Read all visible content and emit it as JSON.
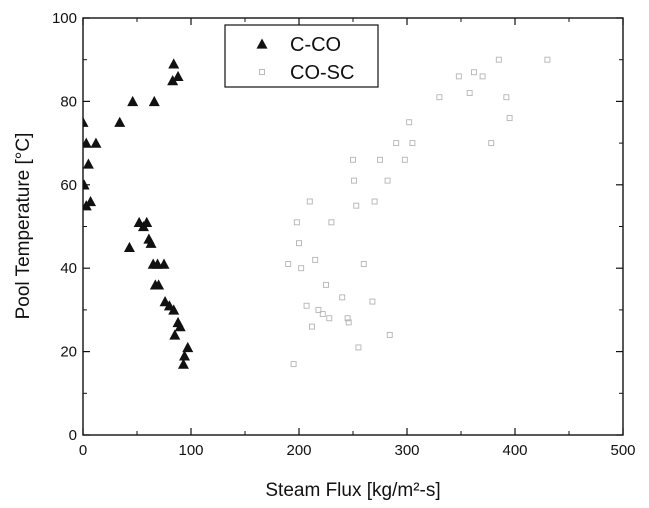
{
  "chart_data": {
    "type": "scatter",
    "xlabel": "Steam Flux [kg/m²-s]",
    "ylabel": "Pool Temperature [°C]",
    "xlim": [
      0,
      500
    ],
    "ylim": [
      0,
      100
    ],
    "x_ticks": [
      "0",
      "100",
      "200",
      "300",
      "400",
      "500"
    ],
    "y_ticks": [
      "0",
      "20",
      "40",
      "60",
      "80",
      "100"
    ],
    "grid": false,
    "legend_position": "top-center",
    "series": [
      {
        "name": "C-CO",
        "marker": "filled-triangle",
        "color": "#111111",
        "points": [
          [
            0,
            75
          ],
          [
            3,
            70
          ],
          [
            5,
            65
          ],
          [
            1,
            60
          ],
          [
            3,
            55
          ],
          [
            7,
            56
          ],
          [
            12,
            70
          ],
          [
            34,
            75
          ],
          [
            46,
            80
          ],
          [
            66,
            80
          ],
          [
            83,
            85
          ],
          [
            84,
            89
          ],
          [
            88,
            86
          ],
          [
            43,
            45
          ],
          [
            52,
            51
          ],
          [
            56,
            50
          ],
          [
            59,
            51
          ],
          [
            61,
            47
          ],
          [
            63,
            46
          ],
          [
            65,
            41
          ],
          [
            67,
            36
          ],
          [
            69,
            41
          ],
          [
            70,
            36
          ],
          [
            75,
            41
          ],
          [
            76,
            32
          ],
          [
            80,
            31
          ],
          [
            84,
            30
          ],
          [
            85,
            24
          ],
          [
            88,
            27
          ],
          [
            90,
            26
          ],
          [
            93,
            17
          ],
          [
            94,
            19
          ],
          [
            97,
            21
          ]
        ]
      },
      {
        "name": "CO-SC",
        "marker": "open-square",
        "color": "#b4b4b4",
        "points": [
          [
            190,
            41
          ],
          [
            195,
            17
          ],
          [
            198,
            51
          ],
          [
            200,
            46
          ],
          [
            202,
            40
          ],
          [
            207,
            31
          ],
          [
            210,
            56
          ],
          [
            212,
            26
          ],
          [
            215,
            42
          ],
          [
            218,
            30
          ],
          [
            222,
            29
          ],
          [
            225,
            36
          ],
          [
            228,
            28
          ],
          [
            230,
            51
          ],
          [
            240,
            33
          ],
          [
            245,
            28
          ],
          [
            246,
            27
          ],
          [
            250,
            66
          ],
          [
            251,
            61
          ],
          [
            253,
            55
          ],
          [
            255,
            21
          ],
          [
            260,
            41
          ],
          [
            268,
            32
          ],
          [
            270,
            56
          ],
          [
            275,
            66
          ],
          [
            282,
            61
          ],
          [
            284,
            24
          ],
          [
            290,
            70
          ],
          [
            298,
            66
          ],
          [
            302,
            75
          ],
          [
            305,
            70
          ],
          [
            330,
            81
          ],
          [
            348,
            86
          ],
          [
            358,
            82
          ],
          [
            362,
            87
          ],
          [
            370,
            86
          ],
          [
            378,
            70
          ],
          [
            385,
            90
          ],
          [
            392,
            81
          ],
          [
            395,
            76
          ],
          [
            430,
            90
          ]
        ]
      }
    ]
  }
}
